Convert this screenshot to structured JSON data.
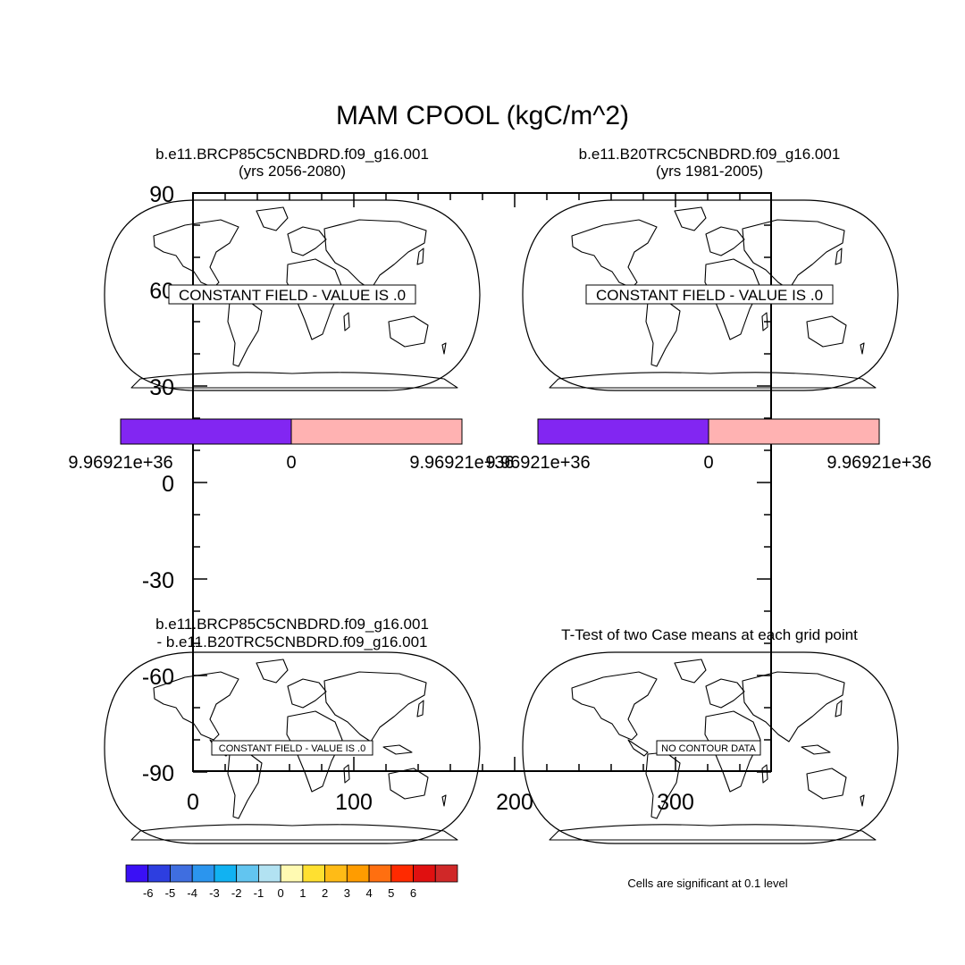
{
  "chart_data": {
    "type": "heatmap",
    "title": "MAM CPOOL (kgC/m^2)",
    "background_axes": {
      "y_ticks": [
        "90",
        "60",
        "30",
        "0",
        "-30",
        "-60",
        "-90"
      ],
      "x_ticks": [
        "0",
        "100",
        "200",
        "300"
      ]
    },
    "panels": [
      {
        "id": "case1",
        "title_line1": "b.e11.BRCP85C5CNBDRD.f09_g16.001",
        "title_line2": "(yrs 2056-2080)",
        "message": "CONSTANT FIELD - VALUE IS .0",
        "colorbar": {
          "colors": [
            "#8226f2",
            "#ffb2b2"
          ],
          "labels": [
            "9.96921e+36",
            "0",
            "9.96921e+36"
          ]
        }
      },
      {
        "id": "case2",
        "title_line1": "b.e11.B20TRC5CNBDRD.f09_g16.001",
        "title_line2": "(yrs 1981-2005)",
        "message": "CONSTANT FIELD - VALUE IS .0",
        "colorbar": {
          "colors": [
            "#8226f2",
            "#ffb2b2"
          ],
          "labels": [
            "9.96921e+36",
            "0",
            "9.96921e+36"
          ]
        }
      },
      {
        "id": "difference",
        "title_line1": "b.e11.BRCP85C5CNBDRD.f09_g16.001",
        "title_line2": "- b.e11.B20TRC5CNBDRD.f09_g16.001",
        "message": "CONSTANT FIELD - VALUE IS .0"
      },
      {
        "id": "ttest",
        "title_line1": "T-Test of two Case means at each grid point",
        "message": "NO CONTOUR DATA",
        "note": "Cells are significant at 0.1 level"
      }
    ],
    "difference_colorbar": {
      "colors": [
        "#3a10f5",
        "#2d3ee0",
        "#3f6ee0",
        "#2b95ee",
        "#11b2f2",
        "#62c5f0",
        "#b2e2f2",
        "#fffab2",
        "#ffe030",
        "#ffbb16",
        "#ff9c00",
        "#ff6f10",
        "#ff2a00",
        "#e01010",
        "#d02828"
      ],
      "labels": [
        "-6",
        "-5",
        "-4",
        "-3",
        "-2",
        "-1",
        "0",
        "1",
        "2",
        "3",
        "4",
        "5",
        "6"
      ]
    }
  }
}
